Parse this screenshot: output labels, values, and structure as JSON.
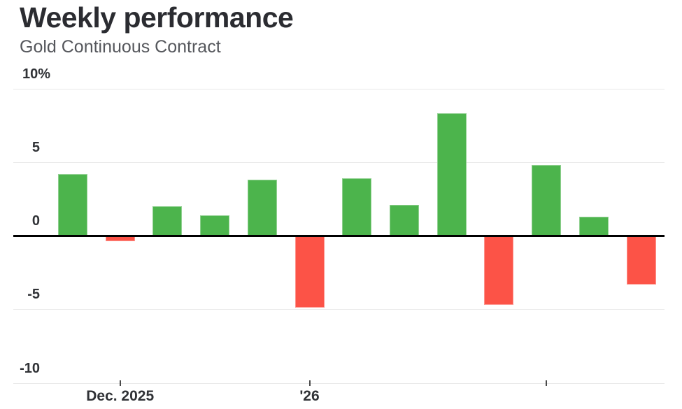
{
  "header": {
    "title": "Weekly performance",
    "subtitle": "Gold Continuous Contract"
  },
  "chart_data": {
    "type": "bar",
    "title": "Weekly performance",
    "subtitle": "Gold Continuous Contract",
    "unit": "%",
    "values": [
      4.2,
      -0.4,
      2.0,
      1.4,
      3.8,
      -4.9,
      3.9,
      2.1,
      8.3,
      -4.7,
      4.8,
      1.3,
      -3.3
    ],
    "positive_color": "#4cb44c",
    "negative_color": "#fc5347",
    "ylim": [
      -10,
      10
    ],
    "ylabel": "",
    "xlabel": "",
    "grid": true,
    "legend": false,
    "zero_line_color": "#000000",
    "gridline_color": "#e9e9e9",
    "y_ticks": [
      {
        "value": 10,
        "label": "10%"
      },
      {
        "value": 5,
        "label": "5"
      },
      {
        "value": 0,
        "label": "0"
      },
      {
        "value": -5,
        "label": "-5"
      },
      {
        "value": -10,
        "label": "-10"
      }
    ],
    "x_ticks": [
      {
        "bar_index": 1,
        "label": "Dec. 2025"
      },
      {
        "bar_index": 5,
        "label": "'26"
      },
      {
        "bar_index": 10,
        "label": ""
      }
    ]
  }
}
